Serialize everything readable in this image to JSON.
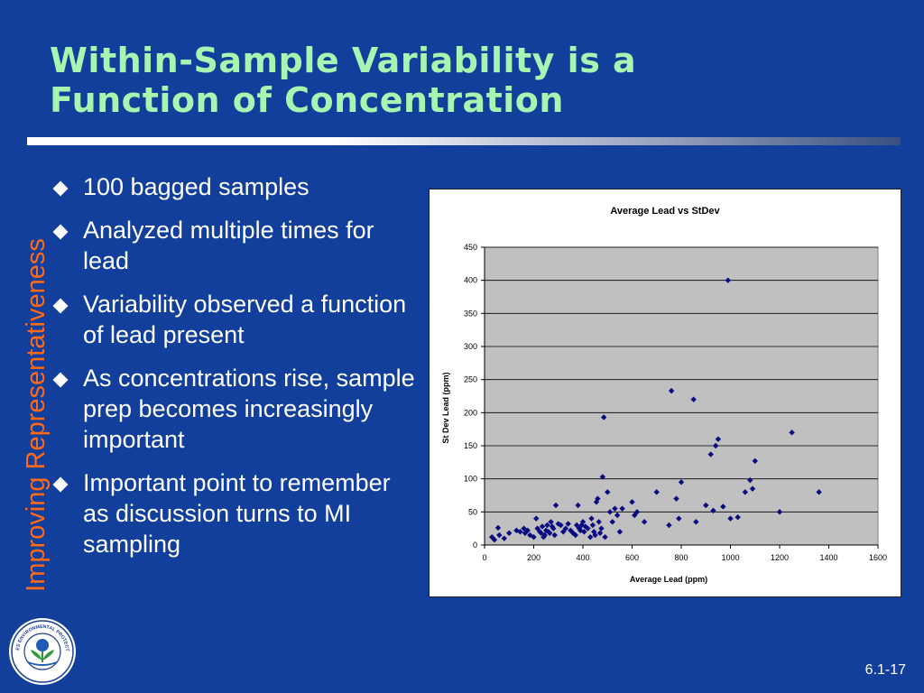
{
  "slide": {
    "title_line1": "Within-Sample Variability is a",
    "title_line2": "Function of Concentration",
    "side_title": "Improving Representativeness",
    "slide_number": "6.1-17",
    "logo_text": "UNITED STATES ENVIRONMENTAL PROTECTION AGENCY",
    "bullets": [
      "100 bagged samples",
      "Analyzed multiple times for lead",
      "Variability observed a function of lead present",
      "As concentrations rise, sample prep becomes increasingly important",
      "Important point to remember as discussion turns to MI sampling"
    ]
  },
  "colors": {
    "background": "#123f9b",
    "title": "#a6f5b0",
    "side_title": "#ff6a18",
    "plot_area": "#c0c0c0",
    "marker": "#0a0a82"
  },
  "chart_data": {
    "type": "scatter",
    "title": "Average Lead vs StDev",
    "xlabel": "Average Lead (ppm)",
    "ylabel": "St Dev Lead (ppm)",
    "xlim": [
      0,
      1600
    ],
    "ylim": [
      0,
      450
    ],
    "xticks": [
      0,
      200,
      400,
      600,
      800,
      1000,
      1200,
      1400,
      1600
    ],
    "yticks": [
      0,
      50,
      100,
      150,
      200,
      250,
      300,
      350,
      400,
      450
    ],
    "grid": "horizontal",
    "legend": "none",
    "series": [
      {
        "marker": "diamond",
        "x": [
          30,
          40,
          55,
          60,
          80,
          100,
          130,
          145,
          160,
          165,
          175,
          185,
          200,
          210,
          215,
          225,
          230,
          235,
          240,
          245,
          250,
          255,
          260,
          265,
          270,
          275,
          280,
          285,
          290,
          300,
          310,
          320,
          330,
          340,
          350,
          360,
          370,
          375,
          380,
          385,
          390,
          395,
          400,
          405,
          410,
          420,
          430,
          435,
          440,
          445,
          450,
          455,
          460,
          465,
          470,
          475,
          480,
          485,
          490,
          500,
          510,
          520,
          530,
          540,
          550,
          560,
          600,
          610,
          620,
          650,
          700,
          750,
          760,
          780,
          790,
          800,
          850,
          860,
          900,
          920,
          930,
          940,
          950,
          970,
          990,
          1000,
          1030,
          1060,
          1080,
          1090,
          1100,
          1200,
          1250,
          1360
        ],
        "y": [
          12,
          8,
          26,
          15,
          10,
          18,
          22,
          20,
          25,
          18,
          22,
          15,
          12,
          40,
          25,
          20,
          18,
          28,
          12,
          15,
          22,
          30,
          20,
          18,
          35,
          28,
          25,
          15,
          60,
          32,
          30,
          20,
          25,
          32,
          22,
          18,
          15,
          30,
          60,
          25,
          22,
          30,
          35,
          20,
          28,
          25,
          12,
          40,
          30,
          20,
          15,
          65,
          70,
          35,
          18,
          25,
          103,
          193,
          12,
          80,
          50,
          35,
          55,
          45,
          20,
          55,
          65,
          45,
          50,
          35,
          80,
          30,
          233,
          70,
          40,
          95,
          220,
          35,
          60,
          137,
          52,
          150,
          160,
          58,
          400,
          40,
          42,
          80,
          98,
          85,
          127,
          50,
          170,
          80
        ]
      }
    ]
  }
}
